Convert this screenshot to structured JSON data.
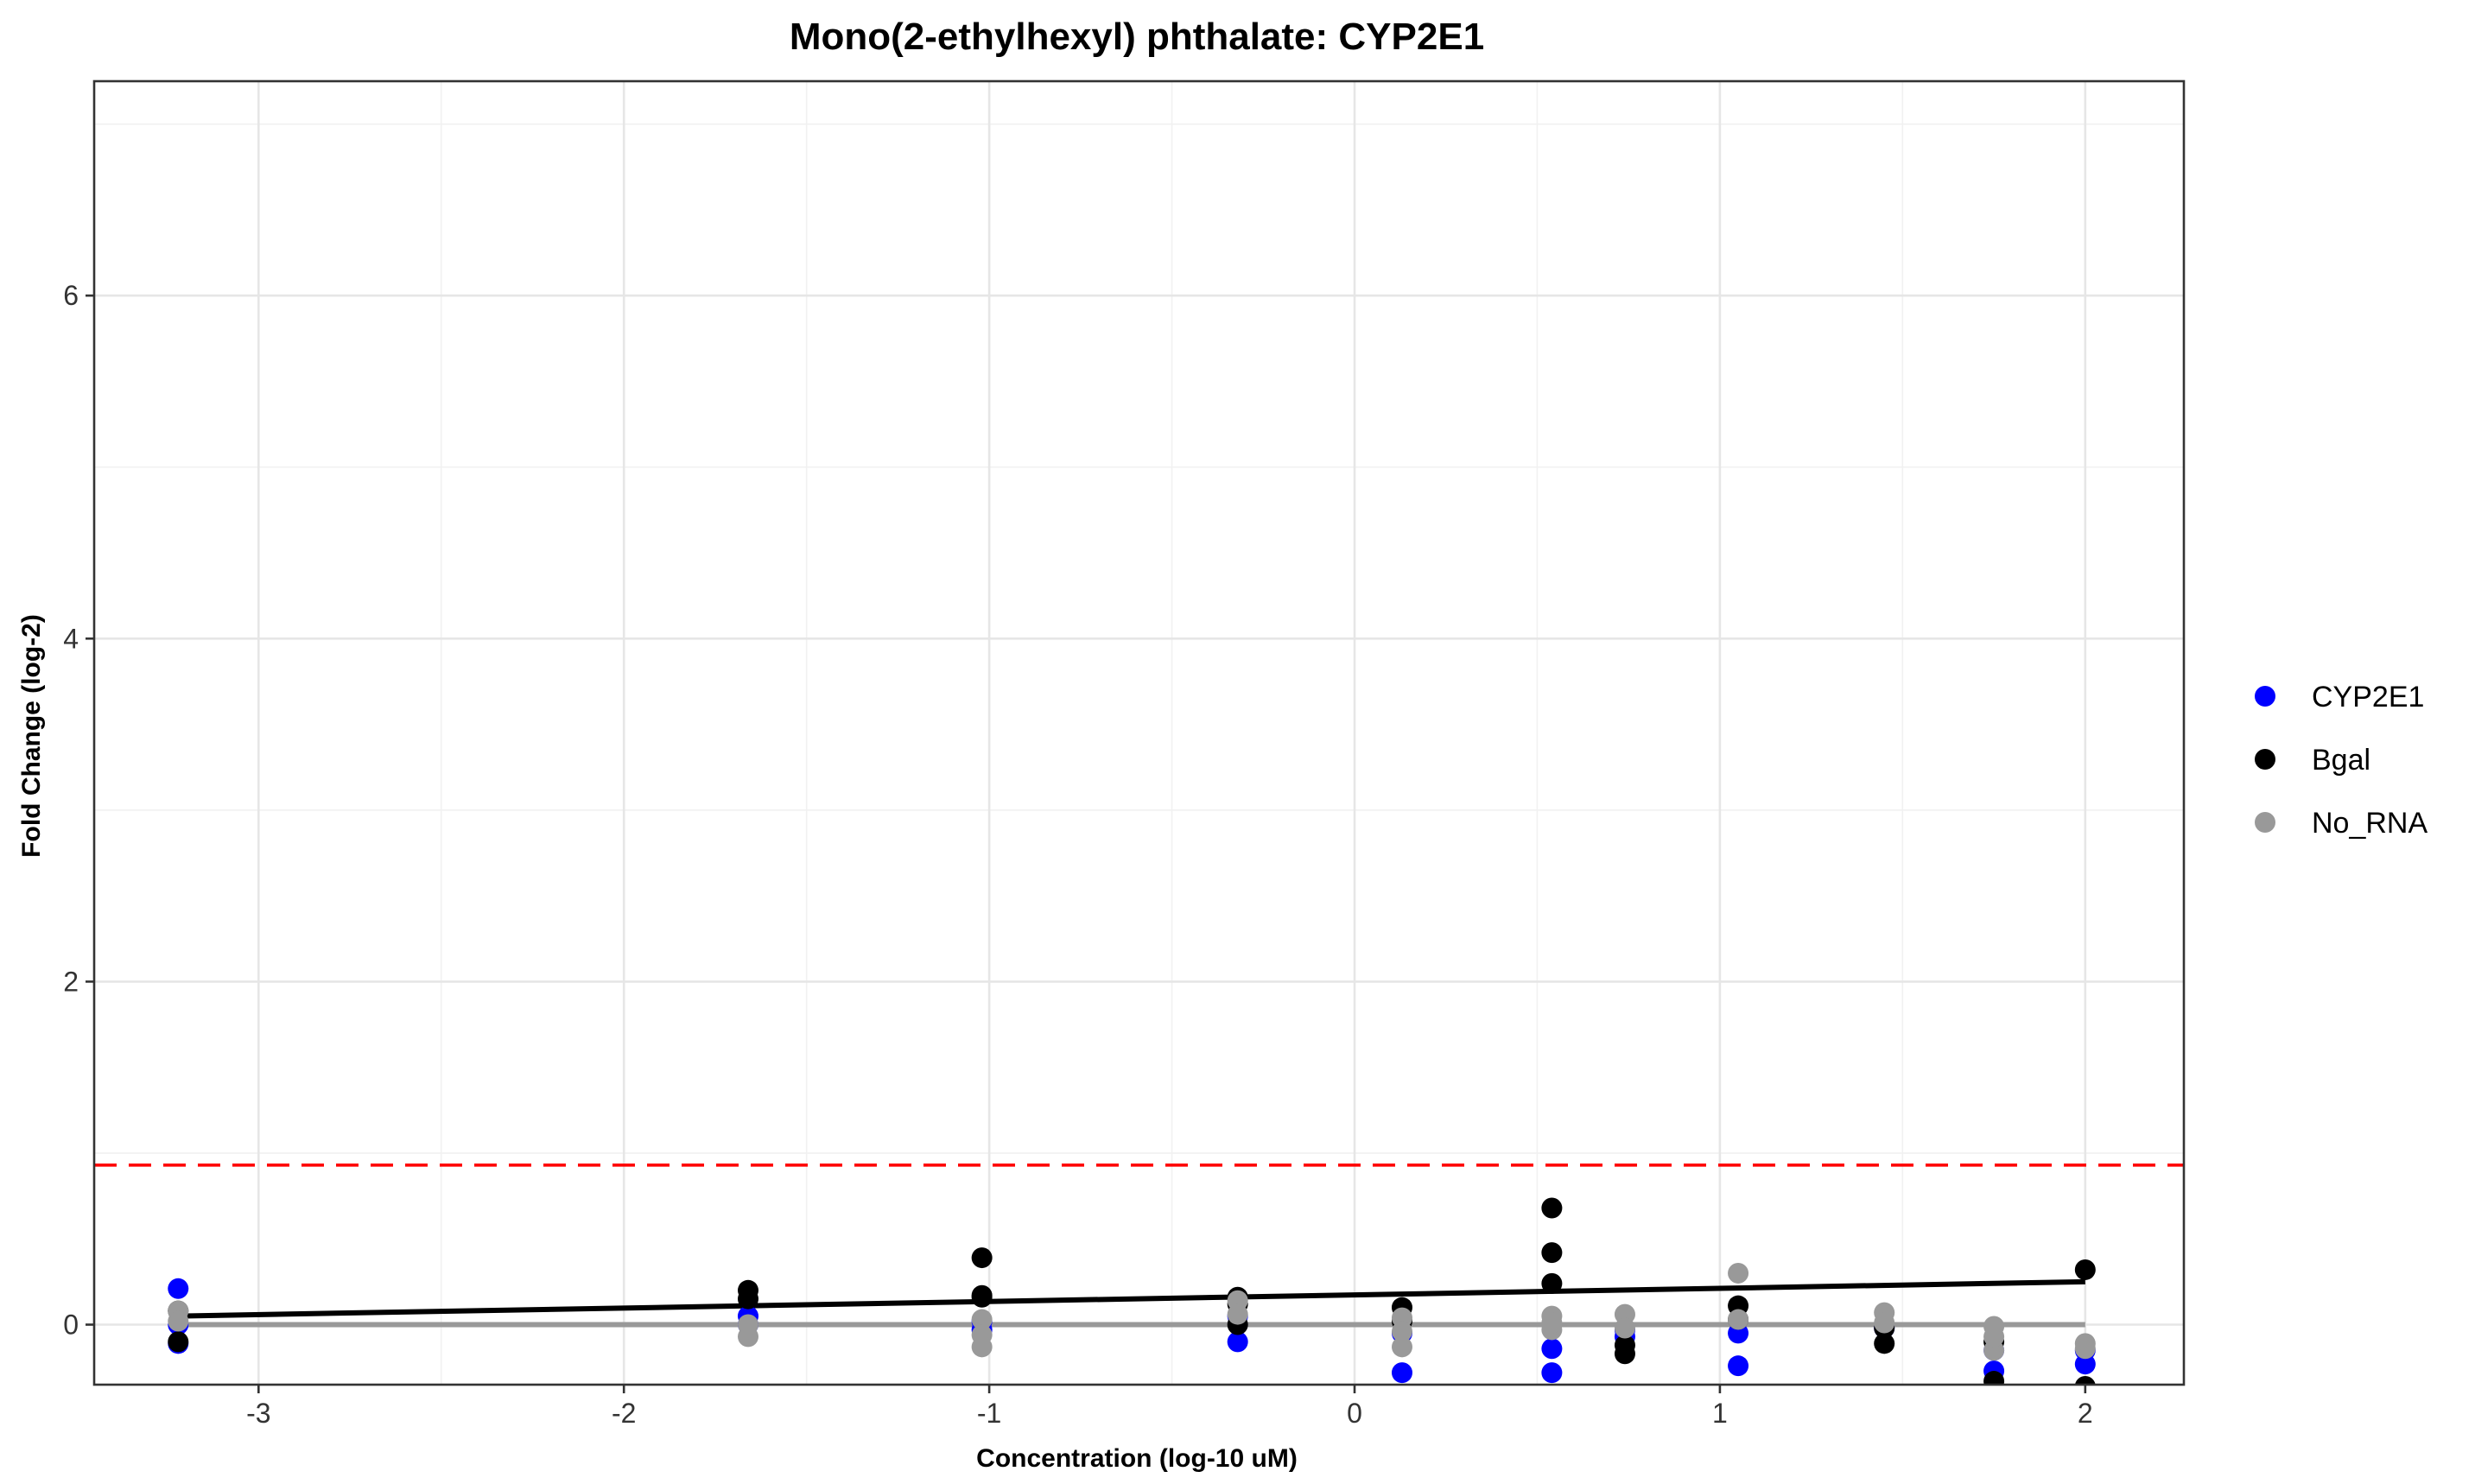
{
  "chart_data": {
    "type": "scatter",
    "title": "Mono(2-ethylhexyl) phthalate: CYP2E1",
    "xlabel": "Concentration (log-10 uM)",
    "ylabel": "Fold Change (log-2)",
    "xlim": [
      -3.45,
      2.27
    ],
    "ylim": [
      -0.35,
      7.25
    ],
    "x_ticks": [
      -3,
      -2,
      -1,
      0,
      1,
      2
    ],
    "x_tick_labels": [
      "-3",
      "-2",
      "-1",
      "0",
      "1",
      "2"
    ],
    "y_ticks": [
      0,
      2,
      4,
      6
    ],
    "y_tick_labels": [
      "0",
      "2",
      "4",
      "6"
    ],
    "x_minor_ticks": [
      -2.5,
      -1.5,
      -0.5,
      0.5,
      1.5
    ],
    "y_minor_ticks": [
      1,
      3,
      5,
      7
    ],
    "grid": true,
    "legend_position": "right",
    "threshold": {
      "y": 0.93,
      "color": "#ff0000",
      "style": "dashed"
    },
    "series": [
      {
        "name": "CYP2E1",
        "color": "#0000ff",
        "points": [
          [
            -3.22,
            0.21
          ],
          [
            -3.22,
            -0.11
          ],
          [
            -3.22,
            0.0
          ],
          [
            -1.66,
            0.05
          ],
          [
            -1.66,
            0.0
          ],
          [
            -1.02,
            -0.03
          ],
          [
            -1.02,
            0.02
          ],
          [
            -0.32,
            -0.1
          ],
          [
            -0.32,
            0.05
          ],
          [
            0.13,
            -0.28
          ],
          [
            0.13,
            -0.05
          ],
          [
            0.54,
            -0.28
          ],
          [
            0.54,
            -0.14
          ],
          [
            0.74,
            -0.07
          ],
          [
            0.74,
            -0.03
          ],
          [
            1.05,
            -0.24
          ],
          [
            1.05,
            -0.05
          ],
          [
            1.45,
            -0.02
          ],
          [
            1.75,
            -0.27
          ],
          [
            1.75,
            -0.15
          ],
          [
            2.0,
            -0.23
          ],
          [
            2.0,
            -0.15
          ]
        ],
        "fit": []
      },
      {
        "name": "Bgal",
        "color": "#000000",
        "points": [
          [
            -3.22,
            -0.1
          ],
          [
            -3.22,
            0.08
          ],
          [
            -1.66,
            0.2
          ],
          [
            -1.66,
            0.15
          ],
          [
            -1.02,
            0.39
          ],
          [
            -1.02,
            0.16
          ],
          [
            -1.02,
            0.17
          ],
          [
            -0.32,
            0.16
          ],
          [
            -0.32,
            0.0
          ],
          [
            -0.32,
            0.12
          ],
          [
            0.13,
            0.1
          ],
          [
            0.13,
            0.02
          ],
          [
            0.54,
            0.68
          ],
          [
            0.54,
            0.42
          ],
          [
            0.54,
            0.24
          ],
          [
            0.74,
            -0.17
          ],
          [
            0.74,
            -0.12
          ],
          [
            1.05,
            0.11
          ],
          [
            1.05,
            0.03
          ],
          [
            1.45,
            -0.11
          ],
          [
            1.45,
            -0.02
          ],
          [
            1.75,
            -0.33
          ],
          [
            1.75,
            -0.1
          ],
          [
            2.0,
            0.32
          ],
          [
            2.0,
            -0.36
          ]
        ],
        "fit": [
          [
            -3.22,
            0.05
          ],
          [
            2.0,
            0.25
          ]
        ]
      },
      {
        "name": "No_RNA",
        "color": "#999999",
        "points": [
          [
            -3.22,
            0.08
          ],
          [
            -3.22,
            0.02
          ],
          [
            -1.66,
            -0.07
          ],
          [
            -1.66,
            0.0
          ],
          [
            -1.02,
            -0.13
          ],
          [
            -1.02,
            0.03
          ],
          [
            -1.02,
            -0.06
          ],
          [
            -0.32,
            0.14
          ],
          [
            -0.32,
            0.06
          ],
          [
            0.13,
            -0.13
          ],
          [
            0.13,
            0.04
          ],
          [
            0.13,
            -0.04
          ],
          [
            0.54,
            0.05
          ],
          [
            0.54,
            -0.03
          ],
          [
            0.54,
            0.01
          ],
          [
            0.74,
            0.06
          ],
          [
            0.74,
            -0.02
          ],
          [
            1.05,
            0.3
          ],
          [
            1.05,
            0.03
          ],
          [
            1.45,
            0.07
          ],
          [
            1.45,
            0.01
          ],
          [
            1.75,
            -0.01
          ],
          [
            1.75,
            -0.15
          ],
          [
            1.75,
            -0.07
          ],
          [
            2.0,
            -0.11
          ],
          [
            2.0,
            -0.14
          ]
        ],
        "fit": [
          [
            -3.22,
            0.0
          ],
          [
            2.0,
            0.0
          ]
        ]
      }
    ]
  }
}
